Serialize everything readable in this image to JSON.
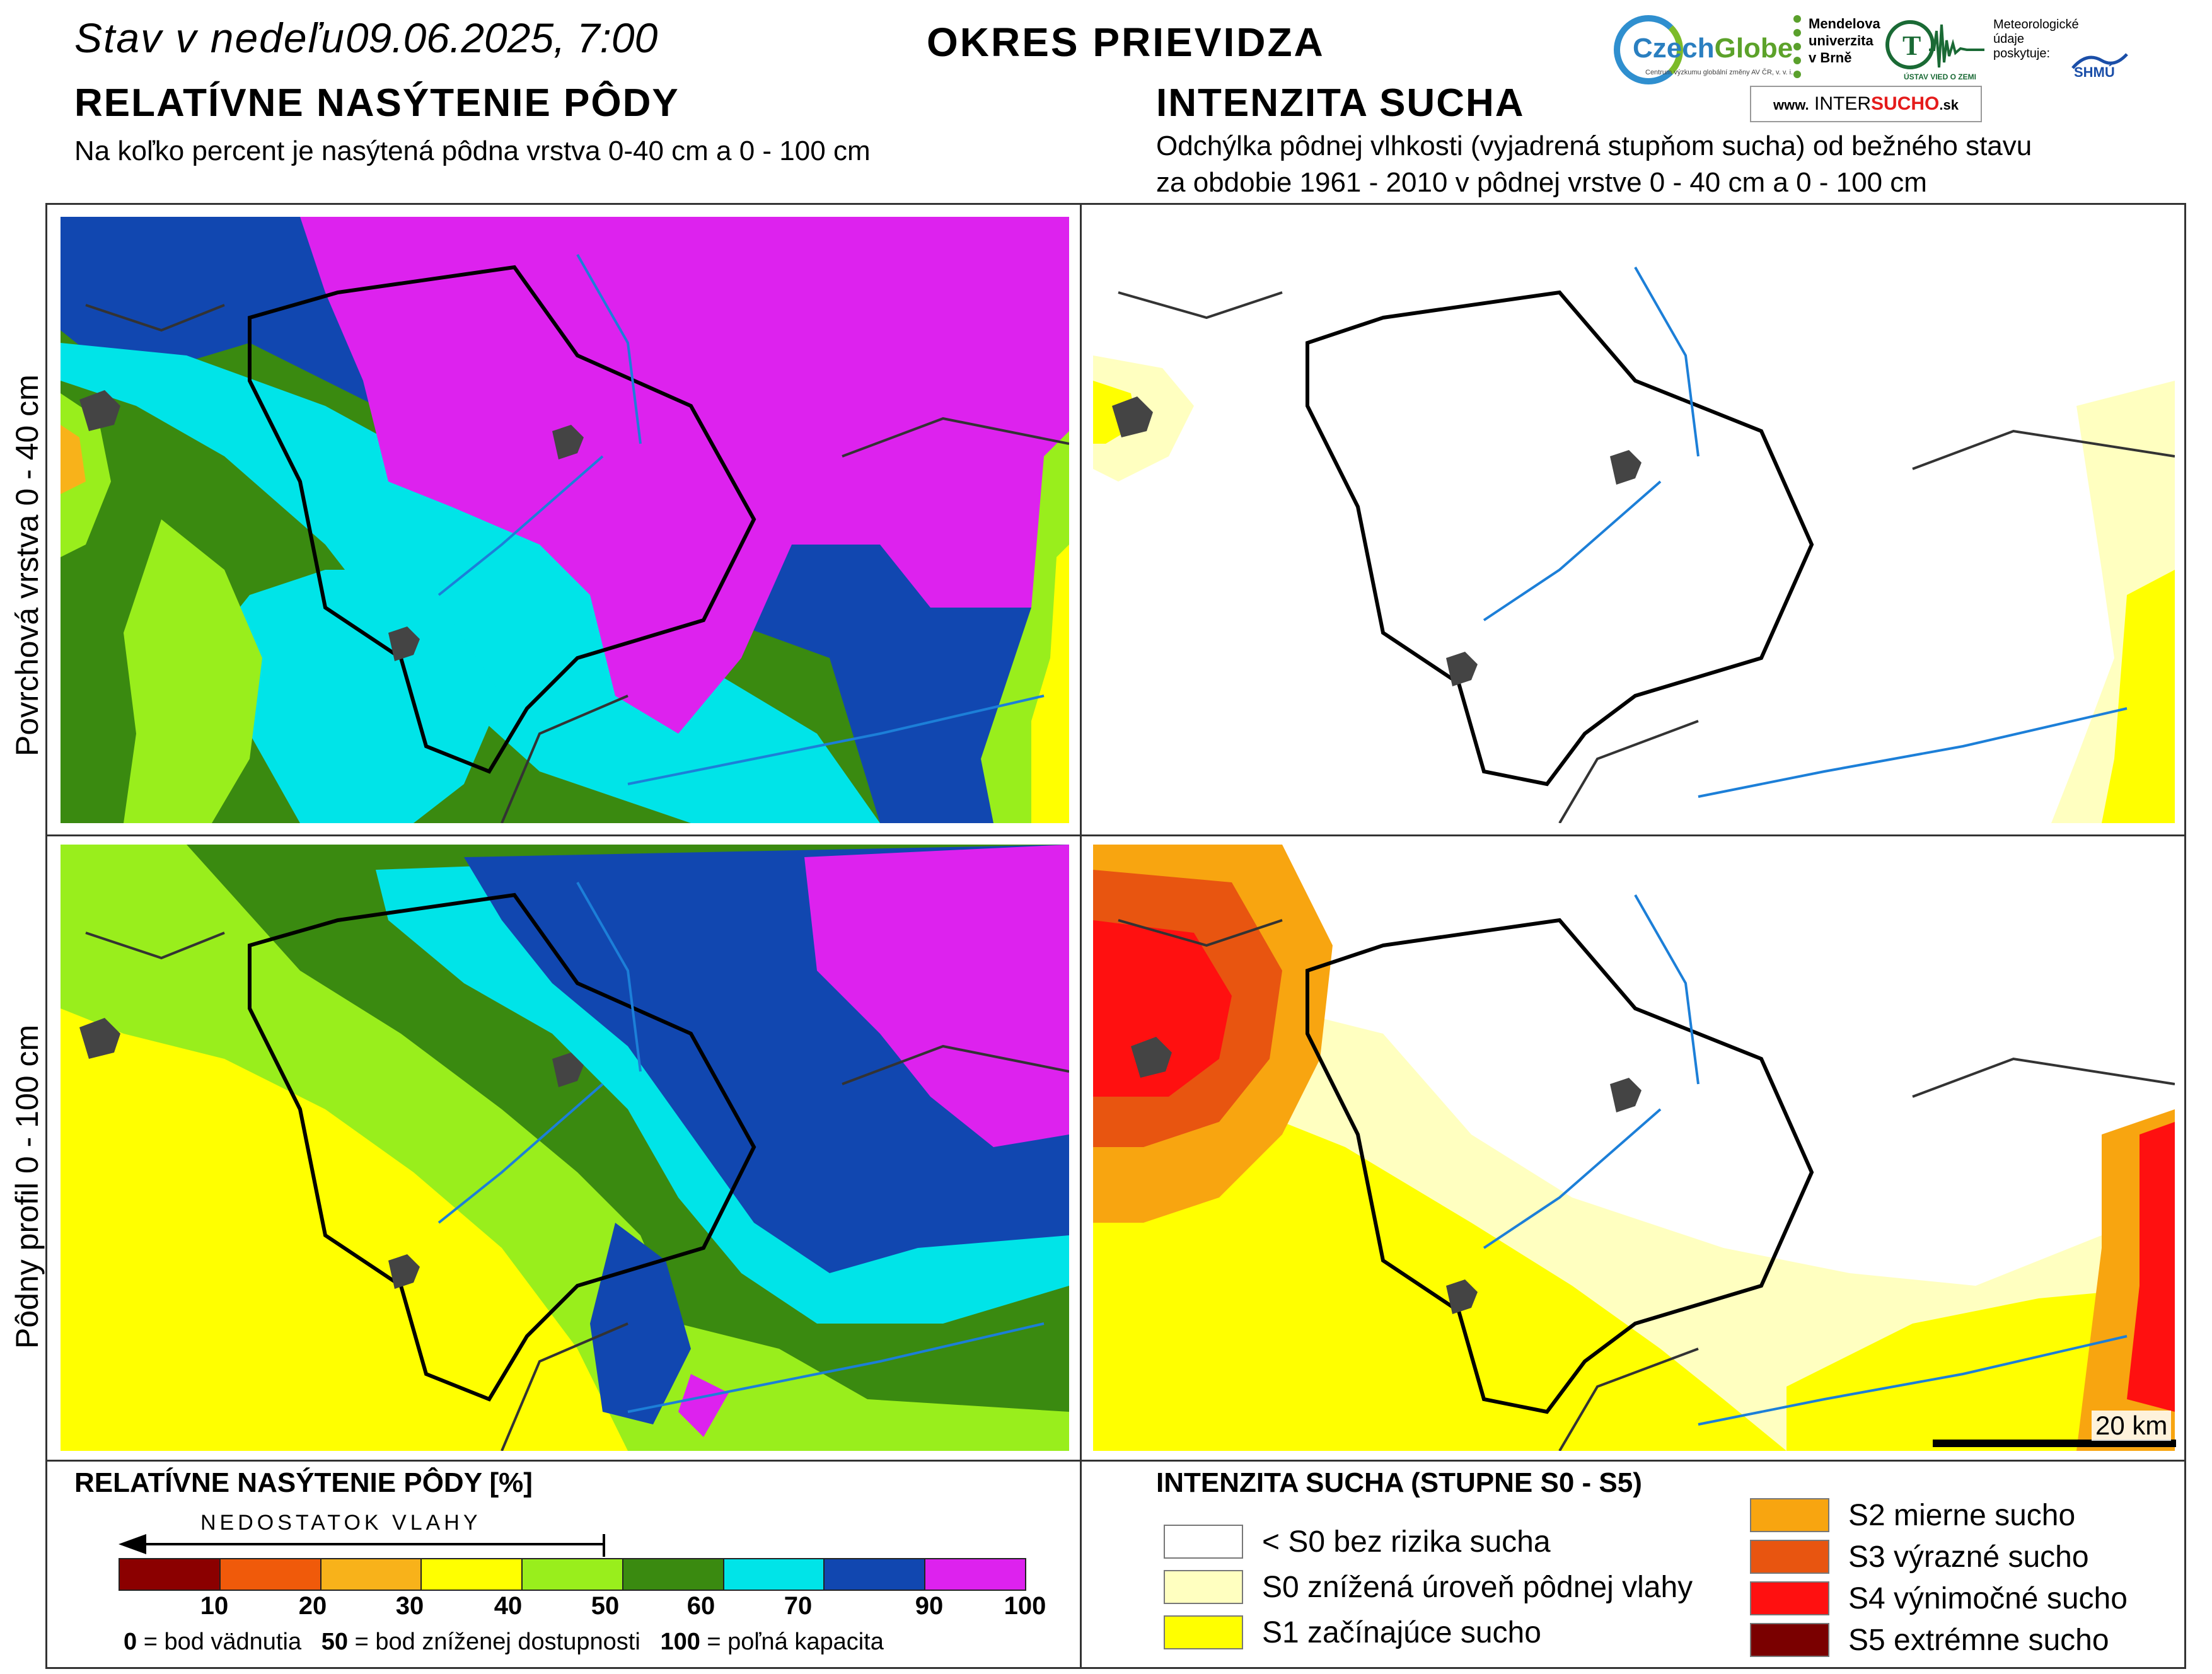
{
  "header": {
    "status_prefix": "Stav v nedeľu",
    "date": "09.06.2025, 7:00",
    "district": "OKRES  PRIEVIDZA"
  },
  "left_section": {
    "title": "RELATÍVNE NASÝTENIE PÔDY",
    "subtitle": "Na koľko percent je nasýtená pôdna vrstva 0-40 cm a 0 - 100 cm"
  },
  "right_section": {
    "title": "INTENZITA SUCHA",
    "subtitle_line1": "Odchýlka pôdnej vlhkosti (vyjadrená stupňom sucha) od bežného stavu",
    "subtitle_line2": "za obdobie 1961 - 2010 v pôdnej vrstve 0 - 40 cm a 0 - 100 cm"
  },
  "logos": {
    "czechglobe_name_a": "Czech",
    "czechglobe_name_b": "Globe",
    "czechglobe_tag": "Centrum výzkumu globální změny AV ČR, v. v. i.",
    "mendel_lines": [
      "Mendelova",
      "univerzita",
      "v Brně"
    ],
    "ustav": "ÚSTAV VIED O ZEMI",
    "meteo_lines": [
      "Meteorologické",
      "údaje",
      "poskytuje:"
    ],
    "shmu": "SHMÚ",
    "intersucho_www": "www.",
    "intersucho_inter": "INTER",
    "intersucho_sucho": "SUCHO",
    "intersucho_sk": ".sk"
  },
  "row_labels": {
    "top": "Povrchová vrstva 0 - 40 cm",
    "bottom": "Pôdny profil 0 - 100 cm"
  },
  "scale_bar": {
    "label": "20 km"
  },
  "legend_saturation": {
    "title": "RELATÍVNE NASÝTENIE PÔDY [%]",
    "deficit_label": "NEDOSTATOK VLAHY",
    "colors": [
      "#8b0000",
      "#f05a0a",
      "#f8b21a",
      "#ffff00",
      "#99ee1c",
      "#3a8a10",
      "#00e4e8",
      "#1147b0",
      "#dd22ee"
    ],
    "ticks": [
      "10",
      "20",
      "30",
      "40",
      "50",
      "60",
      "70",
      "90",
      "100"
    ],
    "explanation": {
      "v0": "0",
      "t0": " = bod vädnutia",
      "v50": "50",
      "t50": " = bod zníženej dostupnosti",
      "v100": "100",
      "t100": " = poľná kapacita"
    }
  },
  "legend_drought": {
    "title": "INTENZITA SUCHA (STUPNE S0 - S5)",
    "classes": [
      {
        "label": "< S0 bez rizika sucha",
        "color": "#ffffff"
      },
      {
        "label": "S0 znížená úroveň pôdnej vlahy",
        "color": "#ffffc0"
      },
      {
        "label": "S1 začínajúce sucho",
        "color": "#ffff00"
      },
      {
        "label": "S2 mierne sucho",
        "color": "#f8a510"
      },
      {
        "label": "S3 výrazné sucho",
        "color": "#e85510"
      },
      {
        "label": "S4 výnimočné sucho",
        "color": "#ff1010"
      },
      {
        "label": "S5 extrémne sucho",
        "color": "#7a0000"
      }
    ]
  }
}
